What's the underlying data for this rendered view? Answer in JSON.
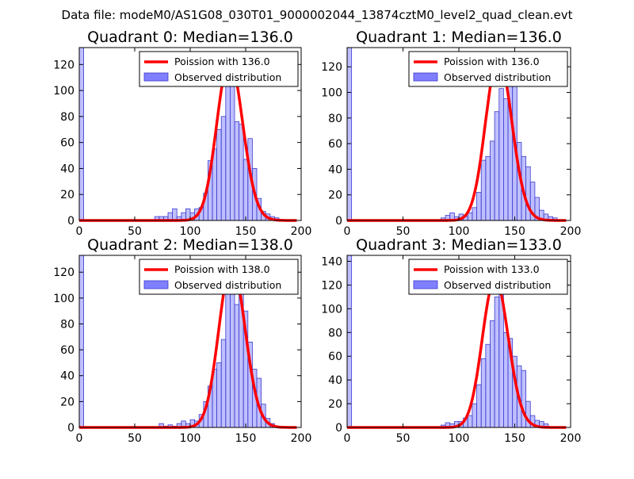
{
  "suptitle": "Data file: modeM0/AS1G08_030T01_9000002044_13874cztM0_level2_quad_clean.evt",
  "colors": {
    "hist_fill": "#7f7fff",
    "hist_edge": "#3c3ccc",
    "fit": "#ff0000"
  },
  "chart_data": [
    {
      "type": "bar",
      "title": "Quadrant 0: Median=136.0",
      "median": 136.0,
      "xlim": [
        0,
        200
      ],
      "ylim": [
        0,
        133
      ],
      "xticks": [
        0,
        50,
        100,
        150,
        200
      ],
      "yticks": [
        0,
        20,
        40,
        60,
        80,
        100,
        120
      ],
      "legend": {
        "position": "top-right",
        "fit_label": "Poission with 136.0",
        "hist_label": "Observed distribution"
      },
      "bin_width": 4,
      "bins": [
        0,
        4,
        8,
        12,
        16,
        20,
        24,
        28,
        32,
        36,
        40,
        44,
        48,
        52,
        56,
        60,
        64,
        68,
        72,
        76,
        80,
        84,
        88,
        92,
        96,
        100,
        104,
        108,
        112,
        116,
        120,
        124,
        128,
        132,
        136,
        140,
        144,
        148,
        152,
        156,
        160,
        164,
        168,
        172,
        176,
        180
      ],
      "counts": [
        133,
        0,
        0,
        0,
        0,
        0,
        0,
        0,
        0,
        0,
        0,
        0,
        0,
        0,
        0,
        0,
        0,
        3,
        3,
        3,
        6,
        9,
        3,
        6,
        9,
        6,
        9,
        10,
        21,
        46,
        55,
        70,
        80,
        108,
        122,
        76,
        74,
        47,
        63,
        40,
        17,
        7,
        5,
        3,
        2,
        0
      ]
    },
    {
      "type": "bar",
      "title": "Quadrant 1: Median=136.0",
      "median": 136.0,
      "xlim": [
        0,
        200
      ],
      "ylim": [
        0,
        135
      ],
      "xticks": [
        0,
        50,
        100,
        150,
        200
      ],
      "yticks": [
        0,
        20,
        40,
        60,
        80,
        100,
        120
      ],
      "legend": {
        "position": "top-right",
        "fit_label": "Poission with 136.0",
        "hist_label": "Observed distribution"
      },
      "bin_width": 4,
      "bins": [
        0,
        4,
        8,
        12,
        16,
        20,
        24,
        28,
        32,
        36,
        40,
        44,
        48,
        52,
        56,
        60,
        64,
        68,
        72,
        76,
        80,
        84,
        88,
        92,
        96,
        100,
        104,
        108,
        112,
        116,
        120,
        124,
        128,
        132,
        136,
        140,
        144,
        148,
        152,
        156,
        160,
        164,
        168,
        172,
        176,
        180,
        184
      ],
      "counts": [
        135,
        0,
        0,
        0,
        0,
        0,
        0,
        0,
        0,
        0,
        0,
        0,
        0,
        0,
        0,
        0,
        0,
        0,
        0,
        0,
        0,
        2,
        4,
        6,
        3,
        5,
        3,
        6,
        10,
        22,
        47,
        50,
        62,
        85,
        103,
        95,
        107,
        108,
        61,
        50,
        42,
        30,
        18,
        8,
        5,
        3,
        2
      ]
    },
    {
      "type": "bar",
      "title": "Quadrant 2: Median=138.0",
      "median": 138.0,
      "xlim": [
        0,
        200
      ],
      "ylim": [
        0,
        133
      ],
      "xticks": [
        0,
        50,
        100,
        150,
        200
      ],
      "yticks": [
        0,
        20,
        40,
        60,
        80,
        100,
        120
      ],
      "legend": {
        "position": "top-right",
        "fit_label": "Poission with 138.0",
        "hist_label": "Observed distribution"
      },
      "bin_width": 4,
      "bins": [
        0,
        4,
        8,
        12,
        16,
        20,
        24,
        28,
        32,
        36,
        40,
        44,
        48,
        52,
        56,
        60,
        64,
        68,
        72,
        76,
        80,
        84,
        88,
        92,
        96,
        100,
        104,
        108,
        112,
        116,
        120,
        124,
        128,
        132,
        136,
        140,
        144,
        148,
        152,
        156,
        160,
        164,
        168,
        172,
        176,
        180
      ],
      "counts": [
        133,
        0,
        0,
        0,
        0,
        0,
        0,
        0,
        0,
        0,
        0,
        0,
        0,
        0,
        0,
        0,
        0,
        0,
        3,
        1,
        2,
        1,
        3,
        5,
        3,
        6,
        5,
        10,
        20,
        32,
        45,
        50,
        68,
        107,
        105,
        95,
        104,
        90,
        66,
        45,
        38,
        18,
        7,
        3,
        1,
        0
      ]
    },
    {
      "type": "bar",
      "title": "Quadrant 3: Median=133.0",
      "median": 133.0,
      "xlim": [
        0,
        200
      ],
      "ylim": [
        0,
        145
      ],
      "xticks": [
        0,
        50,
        100,
        150,
        200
      ],
      "yticks": [
        0,
        20,
        40,
        60,
        80,
        100,
        120,
        140
      ],
      "legend": {
        "position": "top-right",
        "fit_label": "Poission with 133.0",
        "hist_label": "Observed distribution"
      },
      "bin_width": 4,
      "bins": [
        0,
        4,
        8,
        12,
        16,
        20,
        24,
        28,
        32,
        36,
        40,
        44,
        48,
        52,
        56,
        60,
        64,
        68,
        72,
        76,
        80,
        84,
        88,
        92,
        96,
        100,
        104,
        108,
        112,
        116,
        120,
        124,
        128,
        132,
        136,
        140,
        144,
        148,
        152,
        156,
        160,
        164,
        168,
        172,
        176
      ],
      "counts": [
        145,
        0,
        0,
        0,
        0,
        0,
        0,
        0,
        0,
        0,
        0,
        0,
        0,
        0,
        0,
        0,
        0,
        0,
        0,
        0,
        0,
        2,
        4,
        3,
        5,
        5,
        8,
        10,
        20,
        36,
        58,
        70,
        90,
        110,
        125,
        80,
        75,
        60,
        52,
        48,
        22,
        10,
        6,
        5,
        3
      ]
    }
  ]
}
